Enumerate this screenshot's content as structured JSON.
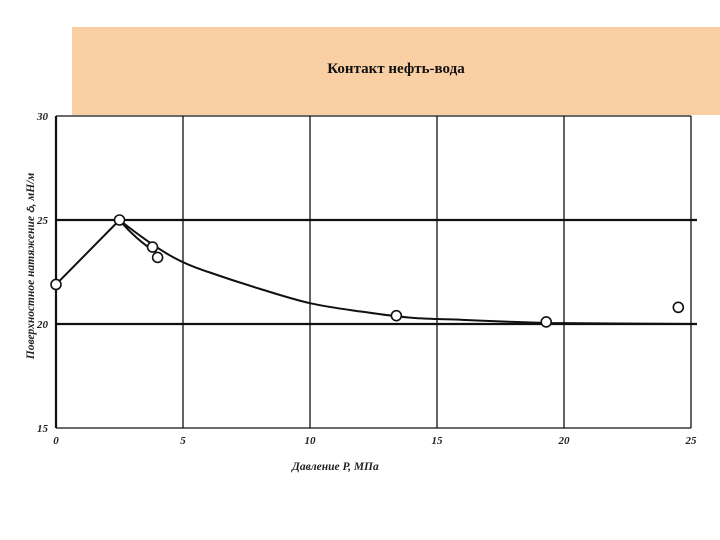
{
  "slide": {
    "title": "Контакт нефть-вода",
    "colors": {
      "title_background": "#f9cfa3",
      "line": "#111111"
    }
  },
  "chart_data": {
    "type": "line",
    "xlabel": "Давление P, МПа",
    "ylabel": "Поверхностное натяжение ઠ, мН/м",
    "xlim": [
      0,
      25
    ],
    "ylim": [
      15,
      30
    ],
    "x_ticks": [
      "0",
      "5",
      "10",
      "15",
      "20",
      "25"
    ],
    "y_ticks": [
      "15",
      "20",
      "25",
      "30"
    ],
    "grid": true,
    "series": [
      {
        "points": [
          {
            "x": 0,
            "y": 21.9
          },
          {
            "x": 2.5,
            "y": 25.0
          },
          {
            "x": 3.8,
            "y": 23.7
          },
          {
            "x": 4.0,
            "y": 23.2
          },
          {
            "x": 13.4,
            "y": 20.4
          },
          {
            "x": 19.3,
            "y": 20.1
          },
          {
            "x": 24.5,
            "y": 20.8
          }
        ],
        "curve": [
          {
            "x": 0,
            "y": 21.9
          },
          {
            "x": 2.5,
            "y": 25.0
          },
          {
            "x": 4.0,
            "y": 23.4
          },
          {
            "x": 6.0,
            "y": 22.5
          },
          {
            "x": 8.0,
            "y": 21.7
          },
          {
            "x": 10.0,
            "y": 21.0
          },
          {
            "x": 12.0,
            "y": 20.6
          },
          {
            "x": 14.0,
            "y": 20.3
          },
          {
            "x": 16.0,
            "y": 20.2
          },
          {
            "x": 18.0,
            "y": 20.1
          },
          {
            "x": 19.3,
            "y": 20.05
          }
        ]
      }
    ]
  }
}
